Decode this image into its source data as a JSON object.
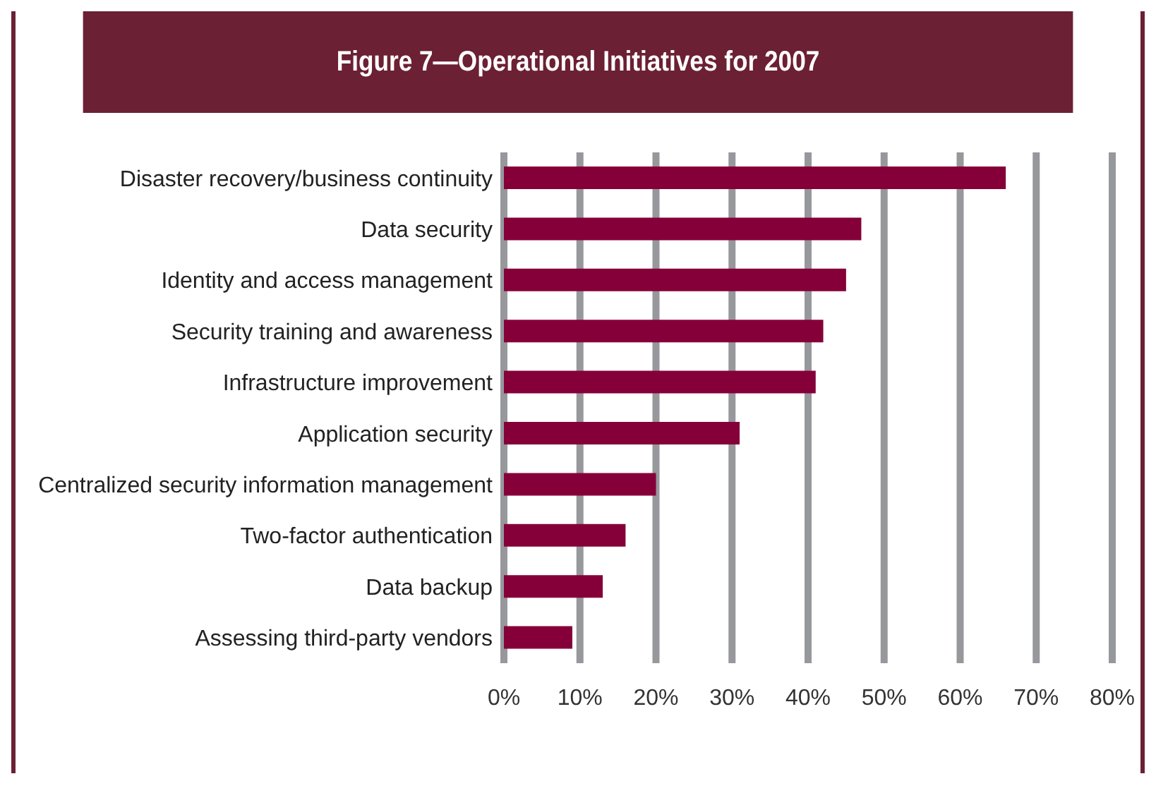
{
  "chart_data": {
    "type": "bar",
    "orientation": "horizontal",
    "title": "Figure 7—Operational Initiatives for 2007",
    "categories": [
      "Disaster recovery/business continuity",
      "Data security",
      "Identity and access management",
      "Security training and awareness",
      "Infrastructure improvement",
      "Application security",
      "Centralized security information management",
      "Two-factor authentication",
      "Data backup",
      "Assessing third-party vendors"
    ],
    "values": [
      66,
      47,
      45,
      42,
      41,
      31,
      20,
      16,
      13,
      9
    ],
    "color": "#850038",
    "xlim": [
      0,
      80
    ],
    "xticks": [
      {
        "value": 0,
        "label": "0%"
      },
      {
        "value": 10,
        "label": "10%"
      },
      {
        "value": 20,
        "label": "20%"
      },
      {
        "value": 30,
        "label": "30%"
      },
      {
        "value": 40,
        "label": "40%"
      },
      {
        "value": 50,
        "label": "50%"
      },
      {
        "value": 60,
        "label": "60%"
      },
      {
        "value": 70,
        "label": "70%"
      },
      {
        "value": 80,
        "label": "80%"
      }
    ],
    "grid": "x",
    "legend": false
  }
}
